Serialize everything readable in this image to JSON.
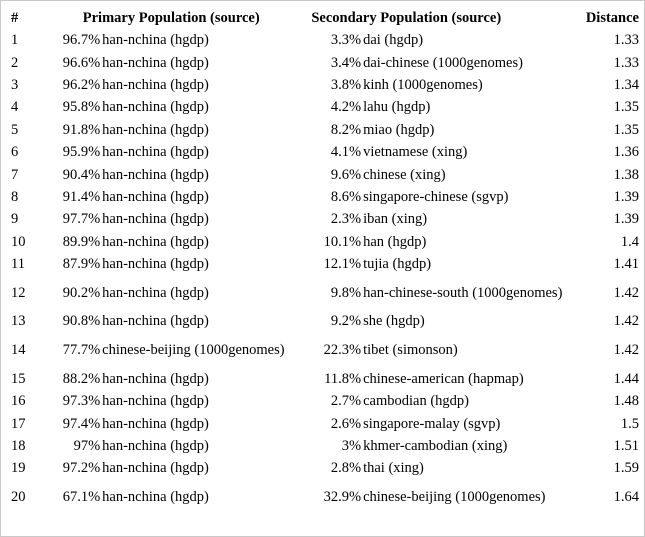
{
  "headers": {
    "index": "#",
    "primary": "Primary Population (source)",
    "secondary": "Secondary Population (source)",
    "distance": "Distance"
  },
  "rows": [
    {
      "idx": "1",
      "ppct": "96.7%",
      "pname": "han-nchina (hgdp)",
      "spct": "3.3%",
      "sname": "dai (hgdp)",
      "dist": "1.33"
    },
    {
      "idx": "2",
      "ppct": "96.6%",
      "pname": "han-nchina (hgdp)",
      "spct": "3.4%",
      "sname": "dai-chinese (1000genomes)",
      "dist": "1.33"
    },
    {
      "idx": "3",
      "ppct": "96.2%",
      "pname": "han-nchina (hgdp)",
      "spct": "3.8%",
      "sname": "kinh (1000genomes)",
      "dist": "1.34"
    },
    {
      "idx": "4",
      "ppct": "95.8%",
      "pname": "han-nchina (hgdp)",
      "spct": "4.2%",
      "sname": "lahu (hgdp)",
      "dist": "1.35"
    },
    {
      "idx": "5",
      "ppct": "91.8%",
      "pname": "han-nchina (hgdp)",
      "spct": "8.2%",
      "sname": "miao (hgdp)",
      "dist": "1.35"
    },
    {
      "idx": "6",
      "ppct": "95.9%",
      "pname": "han-nchina (hgdp)",
      "spct": "4.1%",
      "sname": "vietnamese (xing)",
      "dist": "1.36"
    },
    {
      "idx": "7",
      "ppct": "90.4%",
      "pname": "han-nchina (hgdp)",
      "spct": "9.6%",
      "sname": "chinese (xing)",
      "dist": "1.38"
    },
    {
      "idx": "8",
      "ppct": "91.4%",
      "pname": "han-nchina (hgdp)",
      "spct": "8.6%",
      "sname": "singapore-chinese (sgvp)",
      "dist": "1.39"
    },
    {
      "idx": "9",
      "ppct": "97.7%",
      "pname": "han-nchina (hgdp)",
      "spct": "2.3%",
      "sname": "iban (xing)",
      "dist": "1.39"
    },
    {
      "idx": "10",
      "ppct": "89.9%",
      "pname": "han-nchina (hgdp)",
      "spct": "10.1%",
      "sname": "han (hgdp)",
      "dist": "1.4"
    },
    {
      "idx": "11",
      "ppct": "87.9%",
      "pname": "han-nchina (hgdp)",
      "spct": "12.1%",
      "sname": "tujia (hgdp)",
      "dist": "1.41"
    },
    {
      "idx": "12",
      "ppct": "90.2%",
      "pname": "han-nchina (hgdp)",
      "spct": "9.8%",
      "sname": "han-chinese-south (1000genomes)",
      "dist": "1.42",
      "tall": true
    },
    {
      "idx": "13",
      "ppct": "90.8%",
      "pname": "han-nchina (hgdp)",
      "spct": "9.2%",
      "sname": "she (hgdp)",
      "dist": "1.42"
    },
    {
      "idx": "14",
      "ppct": "77.7%",
      "pname": "chinese-beijing (1000genomes)",
      "spct": "22.3%",
      "sname": "tibet (simonson)",
      "dist": "1.42",
      "tall": true
    },
    {
      "idx": "15",
      "ppct": "88.2%",
      "pname": "han-nchina (hgdp)",
      "spct": "11.8%",
      "sname": "chinese-american (hapmap)",
      "dist": "1.44"
    },
    {
      "idx": "16",
      "ppct": "97.3%",
      "pname": "han-nchina (hgdp)",
      "spct": "2.7%",
      "sname": "cambodian (hgdp)",
      "dist": "1.48"
    },
    {
      "idx": "17",
      "ppct": "97.4%",
      "pname": "han-nchina (hgdp)",
      "spct": "2.6%",
      "sname": "singapore-malay (sgvp)",
      "dist": "1.5"
    },
    {
      "idx": "18",
      "ppct": "97%",
      "pname": "han-nchina (hgdp)",
      "spct": "3%",
      "sname": "khmer-cambodian (xing)",
      "dist": "1.51"
    },
    {
      "idx": "19",
      "ppct": "97.2%",
      "pname": "han-nchina (hgdp)",
      "spct": "2.8%",
      "sname": "thai (xing)",
      "dist": "1.59"
    },
    {
      "idx": "20",
      "ppct": "67.1%",
      "pname": "han-nchina (hgdp)",
      "spct": "32.9%",
      "sname": "chinese-beijing (1000genomes)",
      "dist": "1.64",
      "tall": true
    }
  ]
}
